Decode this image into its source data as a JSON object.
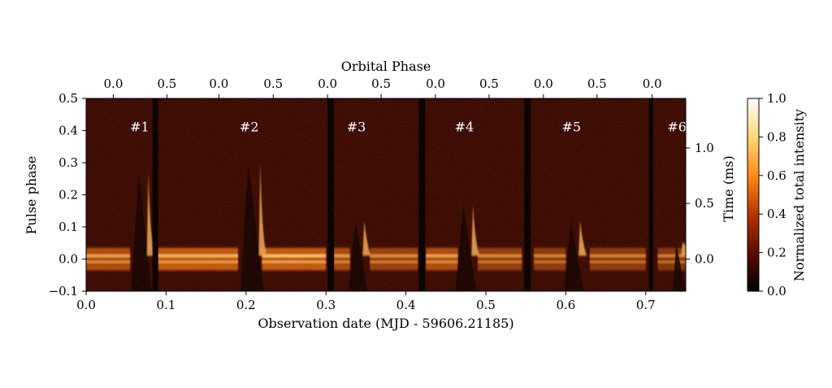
{
  "chart_data": {
    "type": "heatmap",
    "xlabel": "Observation date (MJD - 59606.21185)",
    "ylabel": "Pulse phase",
    "top_axis_label": "Orbital Phase",
    "right_axis_label": "Time (ms)",
    "colorbar_label": "Normalized total intensity",
    "xlim": [
      0.0,
      0.75
    ],
    "ylim": [
      -0.1,
      0.5
    ],
    "x_ticks": [
      "0.0",
      "0.1",
      "0.2",
      "0.3",
      "0.4",
      "0.5",
      "0.6",
      "0.7"
    ],
    "x_tick_values": [
      0.0,
      0.1,
      0.2,
      0.3,
      0.4,
      0.5,
      0.6,
      0.7
    ],
    "y_ticks": [
      "−0.1",
      "0.0",
      "0.1",
      "0.2",
      "0.3",
      "0.4",
      "0.5"
    ],
    "y_tick_values": [
      -0.1,
      0.0,
      0.1,
      0.2,
      0.3,
      0.4,
      0.5
    ],
    "right_ticks": [
      "0.0",
      "0.5",
      "1.0"
    ],
    "right_tick_pulse_phase": [
      0.0,
      0.173,
      0.346
    ],
    "top_ticks": [
      "0.0",
      "0.5",
      "0.0",
      "0.5",
      "0.0",
      "0.5",
      "0.0",
      "0.5",
      "0.0",
      "0.5",
      "0.0"
    ],
    "top_tick_dates": [
      0.034,
      0.101,
      0.166,
      0.234,
      0.302,
      0.369,
      0.437,
      0.504,
      0.572,
      0.639,
      0.708
    ],
    "colorbar_ticks": [
      "0.0",
      "0.2",
      "0.4",
      "0.6",
      "0.8",
      "1.0"
    ],
    "colorbar_range": [
      0.0,
      1.0
    ],
    "colormap": "afmhot",
    "colors": {
      "background": "#3a0a03",
      "band": "#c2580a",
      "band_bright": "#ffe08a",
      "eclipse": "#150402",
      "gap": "#050000"
    },
    "pulse_band": {
      "center": 0.0,
      "half_width": 0.035
    },
    "band_brightness": [
      {
        "x_start": 0.0,
        "x_end": 0.055,
        "level": 0.6
      },
      {
        "x_start": 0.09,
        "x_end": 0.19,
        "level": 0.75
      },
      {
        "x_start": 0.22,
        "x_end": 0.3,
        "level": 0.85
      },
      {
        "x_start": 0.31,
        "x_end": 0.33,
        "level": 0.55
      },
      {
        "x_start": 0.355,
        "x_end": 0.415,
        "level": 0.45
      },
      {
        "x_start": 0.425,
        "x_end": 0.465,
        "level": 0.6
      },
      {
        "x_start": 0.49,
        "x_end": 0.545,
        "level": 0.4
      },
      {
        "x_start": 0.56,
        "x_end": 0.6,
        "level": 0.35
      },
      {
        "x_start": 0.63,
        "x_end": 0.7,
        "level": 0.35
      },
      {
        "x_start": 0.715,
        "x_end": 0.75,
        "level": 0.3
      }
    ],
    "data_gaps": [
      {
        "x_start": 0.083,
        "x_end": 0.09
      },
      {
        "x_start": 0.302,
        "x_end": 0.31
      },
      {
        "x_start": 0.416,
        "x_end": 0.424
      },
      {
        "x_start": 0.548,
        "x_end": 0.556
      },
      {
        "x_start": 0.704,
        "x_end": 0.709
      }
    ],
    "eclipses": [
      {
        "label": "#1",
        "x_center": 0.069,
        "x_ingress": 0.056,
        "x_egress": 0.082,
        "tail_top": 0.27
      },
      {
        "label": "#2",
        "x_center": 0.206,
        "x_ingress": 0.193,
        "x_egress": 0.222,
        "tail_top": 0.3
      },
      {
        "label": "#3",
        "x_center": 0.34,
        "x_ingress": 0.328,
        "x_egress": 0.352,
        "tail_top": 0.12
      },
      {
        "label": "#4",
        "x_center": 0.475,
        "x_ingress": 0.462,
        "x_egress": 0.488,
        "tail_top": 0.17
      },
      {
        "label": "#5",
        "x_center": 0.609,
        "x_ingress": 0.598,
        "x_egress": 0.622,
        "tail_top": 0.12
      },
      {
        "label": "#6",
        "x_center": 0.741,
        "x_ingress": 0.734,
        "x_egress": 0.75,
        "tail_top": 0.05
      }
    ],
    "annotation_y": 0.41
  }
}
